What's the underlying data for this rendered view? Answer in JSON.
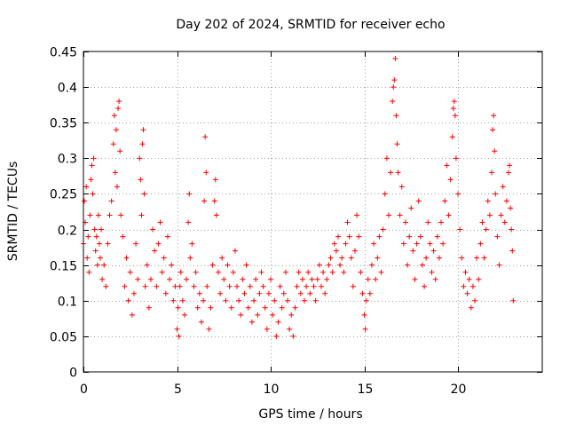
{
  "chart_data": {
    "type": "scatter",
    "title": "Day 202 of 2024, SRMTID for receiver echo",
    "xlabel": "GPS time / hours",
    "ylabel": "SRMTID / TECUs",
    "xlim": [
      0,
      24.5
    ],
    "ylim": [
      0,
      0.45
    ],
    "grid": true,
    "marker": "+",
    "marker_color": "#ff0000",
    "x_ticks": [
      0,
      5,
      10,
      15,
      20
    ],
    "x_tick_labels": [
      "0",
      "5",
      "10",
      "15",
      "20"
    ],
    "y_ticks": [
      0,
      0.05,
      0.1,
      0.15,
      0.2,
      0.25,
      0.3,
      0.35,
      0.4,
      0.45
    ],
    "y_tick_labels": [
      "0",
      "0.05",
      "0.1",
      "0.15",
      "0.2",
      "0.25",
      "0.3",
      "0.35",
      "0.4",
      "0.45"
    ],
    "series": [
      {
        "name": "SRMTID",
        "points": [
          [
            0.0,
            0.18
          ],
          [
            0.05,
            0.24
          ],
          [
            0.1,
            0.21
          ],
          [
            0.15,
            0.26
          ],
          [
            0.2,
            0.16
          ],
          [
            0.25,
            0.19
          ],
          [
            0.3,
            0.14
          ],
          [
            0.35,
            0.22
          ],
          [
            0.4,
            0.27
          ],
          [
            0.45,
            0.29
          ],
          [
            0.5,
            0.25
          ],
          [
            0.55,
            0.3
          ],
          [
            0.6,
            0.2
          ],
          [
            0.65,
            0.17
          ],
          [
            0.7,
            0.19
          ],
          [
            0.75,
            0.15
          ],
          [
            0.8,
            0.22
          ],
          [
            0.85,
            0.18
          ],
          [
            0.9,
            0.16
          ],
          [
            0.95,
            0.2
          ],
          [
            1.0,
            0.13
          ],
          [
            1.1,
            0.15
          ],
          [
            1.2,
            0.12
          ],
          [
            1.3,
            0.18
          ],
          [
            1.4,
            0.22
          ],
          [
            1.5,
            0.24
          ],
          [
            1.6,
            0.32
          ],
          [
            1.65,
            0.36
          ],
          [
            1.7,
            0.28
          ],
          [
            1.75,
            0.34
          ],
          [
            1.8,
            0.26
          ],
          [
            1.85,
            0.37
          ],
          [
            1.9,
            0.38
          ],
          [
            1.95,
            0.31
          ],
          [
            2.0,
            0.22
          ],
          [
            2.1,
            0.19
          ],
          [
            2.2,
            0.12
          ],
          [
            2.3,
            0.16
          ],
          [
            2.4,
            0.1
          ],
          [
            2.5,
            0.14
          ],
          [
            2.6,
            0.08
          ],
          [
            2.7,
            0.11
          ],
          [
            2.8,
            0.18
          ],
          [
            2.9,
            0.13
          ],
          [
            3.0,
            0.3
          ],
          [
            3.05,
            0.27
          ],
          [
            3.1,
            0.22
          ],
          [
            3.15,
            0.32
          ],
          [
            3.2,
            0.34
          ],
          [
            3.25,
            0.25
          ],
          [
            3.3,
            0.12
          ],
          [
            3.4,
            0.15
          ],
          [
            3.5,
            0.09
          ],
          [
            3.6,
            0.13
          ],
          [
            3.7,
            0.2
          ],
          [
            3.8,
            0.17
          ],
          [
            3.9,
            0.12
          ],
          [
            4.0,
            0.18
          ],
          [
            4.1,
            0.21
          ],
          [
            4.2,
            0.14
          ],
          [
            4.3,
            0.16
          ],
          [
            4.4,
            0.11
          ],
          [
            4.5,
            0.19
          ],
          [
            4.6,
            0.13
          ],
          [
            4.7,
            0.15
          ],
          [
            4.8,
            0.1
          ],
          [
            4.9,
            0.12
          ],
          [
            5.0,
            0.06
          ],
          [
            5.05,
            0.09
          ],
          [
            5.1,
            0.05
          ],
          [
            5.15,
            0.12
          ],
          [
            5.2,
            0.14
          ],
          [
            5.3,
            0.1
          ],
          [
            5.4,
            0.08
          ],
          [
            5.5,
            0.13
          ],
          [
            5.6,
            0.21
          ],
          [
            5.65,
            0.25
          ],
          [
            5.7,
            0.16
          ],
          [
            5.8,
            0.18
          ],
          [
            5.9,
            0.12
          ],
          [
            6.0,
            0.14
          ],
          [
            6.1,
            0.09
          ],
          [
            6.2,
            0.11
          ],
          [
            6.3,
            0.07
          ],
          [
            6.4,
            0.1
          ],
          [
            6.45,
            0.24
          ],
          [
            6.5,
            0.33
          ],
          [
            6.55,
            0.28
          ],
          [
            6.6,
            0.12
          ],
          [
            6.7,
            0.06
          ],
          [
            6.8,
            0.09
          ],
          [
            6.9,
            0.15
          ],
          [
            7.0,
            0.24
          ],
          [
            7.05,
            0.27
          ],
          [
            7.1,
            0.22
          ],
          [
            7.2,
            0.14
          ],
          [
            7.3,
            0.11
          ],
          [
            7.4,
            0.16
          ],
          [
            7.5,
            0.13
          ],
          [
            7.6,
            0.1
          ],
          [
            7.7,
            0.15
          ],
          [
            7.8,
            0.12
          ],
          [
            7.9,
            0.09
          ],
          [
            8.0,
            0.14
          ],
          [
            8.1,
            0.17
          ],
          [
            8.2,
            0.12
          ],
          [
            8.3,
            0.1
          ],
          [
            8.4,
            0.08
          ],
          [
            8.5,
            0.13
          ],
          [
            8.6,
            0.11
          ],
          [
            8.7,
            0.15
          ],
          [
            8.8,
            0.09
          ],
          [
            8.9,
            0.12
          ],
          [
            9.0,
            0.07
          ],
          [
            9.1,
            0.1
          ],
          [
            9.2,
            0.13
          ],
          [
            9.3,
            0.08
          ],
          [
            9.4,
            0.11
          ],
          [
            9.5,
            0.14
          ],
          [
            9.6,
            0.12
          ],
          [
            9.7,
            0.09
          ],
          [
            9.8,
            0.06
          ],
          [
            9.9,
            0.11
          ],
          [
            10.0,
            0.13
          ],
          [
            10.1,
            0.08
          ],
          [
            10.2,
            0.1
          ],
          [
            10.3,
            0.05
          ],
          [
            10.4,
            0.07
          ],
          [
            10.5,
            0.12
          ],
          [
            10.6,
            0.09
          ],
          [
            10.7,
            0.11
          ],
          [
            10.8,
            0.14
          ],
          [
            10.9,
            0.1
          ],
          [
            11.0,
            0.06
          ],
          [
            11.1,
            0.08
          ],
          [
            11.2,
            0.05
          ],
          [
            11.3,
            0.09
          ],
          [
            11.4,
            0.12
          ],
          [
            11.5,
            0.14
          ],
          [
            11.6,
            0.11
          ],
          [
            11.7,
            0.13
          ],
          [
            11.8,
            0.1
          ],
          [
            11.9,
            0.12
          ],
          [
            12.0,
            0.14
          ],
          [
            12.1,
            0.11
          ],
          [
            12.2,
            0.13
          ],
          [
            12.3,
            0.12
          ],
          [
            12.4,
            0.1
          ],
          [
            12.5,
            0.13
          ],
          [
            12.6,
            0.15
          ],
          [
            12.7,
            0.12
          ],
          [
            12.8,
            0.14
          ],
          [
            12.9,
            0.11
          ],
          [
            13.0,
            0.13
          ],
          [
            13.1,
            0.15
          ],
          [
            13.2,
            0.16
          ],
          [
            13.3,
            0.14
          ],
          [
            13.4,
            0.18
          ],
          [
            13.5,
            0.17
          ],
          [
            13.6,
            0.19
          ],
          [
            13.7,
            0.15
          ],
          [
            13.8,
            0.16
          ],
          [
            13.9,
            0.14
          ],
          [
            14.0,
            0.18
          ],
          [
            14.1,
            0.21
          ],
          [
            14.2,
            0.19
          ],
          [
            14.3,
            0.16
          ],
          [
            14.4,
            0.12
          ],
          [
            14.5,
            0.17
          ],
          [
            14.6,
            0.22
          ],
          [
            14.7,
            0.19
          ],
          [
            14.8,
            0.14
          ],
          [
            14.9,
            0.11
          ],
          [
            15.0,
            0.08
          ],
          [
            15.05,
            0.06
          ],
          [
            15.1,
            0.1
          ],
          [
            15.2,
            0.13
          ],
          [
            15.3,
            0.11
          ],
          [
            15.4,
            0.15
          ],
          [
            15.5,
            0.18
          ],
          [
            15.6,
            0.13
          ],
          [
            15.7,
            0.16
          ],
          [
            15.8,
            0.19
          ],
          [
            15.9,
            0.14
          ],
          [
            16.0,
            0.2
          ],
          [
            16.1,
            0.25
          ],
          [
            16.2,
            0.3
          ],
          [
            16.3,
            0.22
          ],
          [
            16.4,
            0.28
          ],
          [
            16.5,
            0.38
          ],
          [
            16.55,
            0.4
          ],
          [
            16.6,
            0.41
          ],
          [
            16.65,
            0.44
          ],
          [
            16.7,
            0.36
          ],
          [
            16.75,
            0.32
          ],
          [
            16.8,
            0.28
          ],
          [
            16.9,
            0.22
          ],
          [
            17.0,
            0.26
          ],
          [
            17.1,
            0.18
          ],
          [
            17.2,
            0.21
          ],
          [
            17.3,
            0.15
          ],
          [
            17.4,
            0.19
          ],
          [
            17.5,
            0.23
          ],
          [
            17.6,
            0.17
          ],
          [
            17.7,
            0.13
          ],
          [
            17.8,
            0.18
          ],
          [
            17.9,
            0.24
          ],
          [
            18.0,
            0.19
          ],
          [
            18.1,
            0.15
          ],
          [
            18.2,
            0.12
          ],
          [
            18.3,
            0.16
          ],
          [
            18.4,
            0.21
          ],
          [
            18.5,
            0.18
          ],
          [
            18.6,
            0.14
          ],
          [
            18.7,
            0.17
          ],
          [
            18.8,
            0.13
          ],
          [
            18.9,
            0.19
          ],
          [
            19.0,
            0.16
          ],
          [
            19.1,
            0.21
          ],
          [
            19.2,
            0.18
          ],
          [
            19.3,
            0.24
          ],
          [
            19.4,
            0.29
          ],
          [
            19.5,
            0.22
          ],
          [
            19.6,
            0.27
          ],
          [
            19.7,
            0.33
          ],
          [
            19.75,
            0.37
          ],
          [
            19.8,
            0.38
          ],
          [
            19.85,
            0.36
          ],
          [
            19.9,
            0.3
          ],
          [
            20.0,
            0.25
          ],
          [
            20.1,
            0.2
          ],
          [
            20.2,
            0.16
          ],
          [
            20.3,
            0.12
          ],
          [
            20.4,
            0.14
          ],
          [
            20.5,
            0.11
          ],
          [
            20.6,
            0.13
          ],
          [
            20.7,
            0.09
          ],
          [
            20.8,
            0.12
          ],
          [
            20.9,
            0.1
          ],
          [
            21.0,
            0.16
          ],
          [
            21.1,
            0.13
          ],
          [
            21.2,
            0.18
          ],
          [
            21.3,
            0.21
          ],
          [
            21.4,
            0.16
          ],
          [
            21.5,
            0.2
          ],
          [
            21.6,
            0.24
          ],
          [
            21.7,
            0.22
          ],
          [
            21.8,
            0.28
          ],
          [
            21.85,
            0.34
          ],
          [
            21.9,
            0.36
          ],
          [
            21.95,
            0.31
          ],
          [
            22.0,
            0.25
          ],
          [
            22.1,
            0.19
          ],
          [
            22.2,
            0.15
          ],
          [
            22.3,
            0.22
          ],
          [
            22.4,
            0.26
          ],
          [
            22.5,
            0.21
          ],
          [
            22.6,
            0.24
          ],
          [
            22.7,
            0.28
          ],
          [
            22.75,
            0.29
          ],
          [
            22.8,
            0.23
          ],
          [
            22.85,
            0.2
          ],
          [
            22.9,
            0.17
          ],
          [
            22.95,
            0.1
          ]
        ]
      }
    ]
  }
}
